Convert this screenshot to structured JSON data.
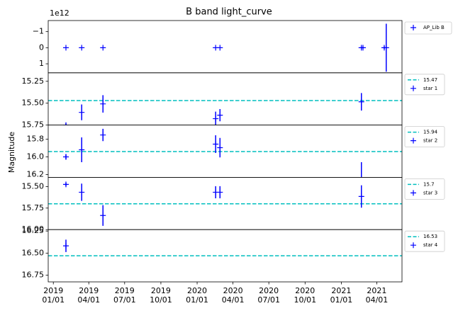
{
  "title": "B band light_curve",
  "y_label": "Magnitude",
  "chart_data": [
    {
      "type": "errorbar",
      "offset_text": "1e12",
      "xlim": [
        "2018-12-19",
        "2021-06-04"
      ],
      "ylim": [
        1.56,
        -1.69
      ],
      "yticks": [
        {
          "value": -1,
          "label": "−1"
        },
        0,
        1
      ],
      "series": [
        {
          "name": "AP_Lib B",
          "color": "#0000ff",
          "x": [
            "2019-02-02",
            "2019-03-14",
            "2019-05-07",
            "2020-02-17",
            "2020-02-28",
            "2021-02-21",
            "2021-02-25",
            "2021-04-20",
            "2021-04-25"
          ],
          "values": [
            0,
            0,
            0,
            0,
            0,
            0,
            0,
            0,
            0
          ],
          "errors": [
            0.02,
            0.02,
            0.02,
            0.02,
            0.02,
            0.05,
            0.05,
            0.08,
            1.49
          ]
        }
      ]
    },
    {
      "type": "errorbar",
      "xlim": [
        "2018-12-19",
        "2021-06-04"
      ],
      "ylim": [
        15.75,
        15.153
      ],
      "yticks": [
        15.25,
        {
          "value": 15.5,
          "label": "15.50"
        },
        15.75
      ],
      "hline": {
        "value": 15.47,
        "color": "#00bfbf"
      },
      "series": [
        {
          "name": "star 1",
          "color": "#0000ff",
          "x": [
            "2019-02-02",
            "2019-03-14",
            "2019-05-07",
            "2020-02-17",
            "2020-02-28",
            "2021-02-21"
          ],
          "values": [
            15.75,
            15.605,
            15.508,
            15.677,
            15.637,
            15.484
          ],
          "errors": [
            0.02,
            0.09,
            0.1,
            0.08,
            0.07,
            0.1
          ]
        }
      ]
    },
    {
      "type": "errorbar",
      "xlim": [
        "2018-12-19",
        "2021-06-04"
      ],
      "ylim": [
        16.232,
        15.64
      ],
      "yticks": [
        15.8,
        {
          "value": 16,
          "label": "16.0"
        },
        16.2
      ],
      "hline": {
        "value": 15.94,
        "color": "#00bfbf"
      },
      "series": [
        {
          "name": "star 2",
          "color": "#0000ff",
          "x": [
            "2019-02-02",
            "2019-03-14",
            "2019-05-07",
            "2020-02-17",
            "2020-02-28",
            "2021-02-21"
          ],
          "values": [
            16.0,
            15.92,
            15.752,
            15.856,
            15.896,
            16.24
          ],
          "errors": [
            0.03,
            0.14,
            0.07,
            0.1,
            0.11,
            0.18
          ]
        }
      ]
    },
    {
      "type": "errorbar",
      "xlim": [
        "2018-12-19",
        "2021-06-04"
      ],
      "ylim": [
        16.0,
        15.393
      ],
      "yticks": [
        {
          "value": 15.5,
          "label": "15.50"
        },
        15.75,
        {
          "value": 16,
          "label": "16.00"
        }
      ],
      "hline": {
        "value": 15.7,
        "color": "#00bfbf"
      },
      "series": [
        {
          "name": "star 3",
          "color": "#0000ff",
          "x": [
            "2019-02-02",
            "2019-03-14",
            "2019-05-07",
            "2020-02-17",
            "2020-02-28",
            "2021-02-21"
          ],
          "values": [
            15.475,
            15.566,
            15.836,
            15.566,
            15.566,
            15.615
          ],
          "errors": [
            0.02,
            0.1,
            0.12,
            0.07,
            0.07,
            0.13
          ]
        }
      ]
    },
    {
      "type": "errorbar",
      "xlim": [
        "2018-12-19",
        "2021-06-04"
      ],
      "ylim": [
        16.826,
        16.234
      ],
      "yticks": [
        16.25,
        {
          "value": 16.5,
          "label": "16.50"
        },
        16.75
      ],
      "xticks": [
        {
          "value": "2019-01-01",
          "label": "2019\n01/01"
        },
        {
          "value": "2019-04-01",
          "label": "2019\n04/01"
        },
        {
          "value": "2019-07-01",
          "label": "2019\n07/01"
        },
        {
          "value": "2019-10-01",
          "label": "2019\n10/01"
        },
        {
          "value": "2020-01-01",
          "label": "2020\n01/01"
        },
        {
          "value": "2020-04-01",
          "label": "2020\n04/01"
        },
        {
          "value": "2020-07-01",
          "label": "2020\n07/01"
        },
        {
          "value": "2020-10-01",
          "label": "2020\n10/01"
        },
        {
          "value": "2021-01-01",
          "label": "2021\n01/01"
        },
        {
          "value": "2021-04-01",
          "label": "2021\n04/01"
        }
      ],
      "hline": {
        "value": 16.53,
        "color": "#00bfbf"
      },
      "series": [
        {
          "name": "star 4",
          "color": "#0000ff",
          "x": [
            "2019-02-02"
          ],
          "values": [
            16.418
          ],
          "errors": [
            0.07
          ]
        }
      ]
    }
  ]
}
